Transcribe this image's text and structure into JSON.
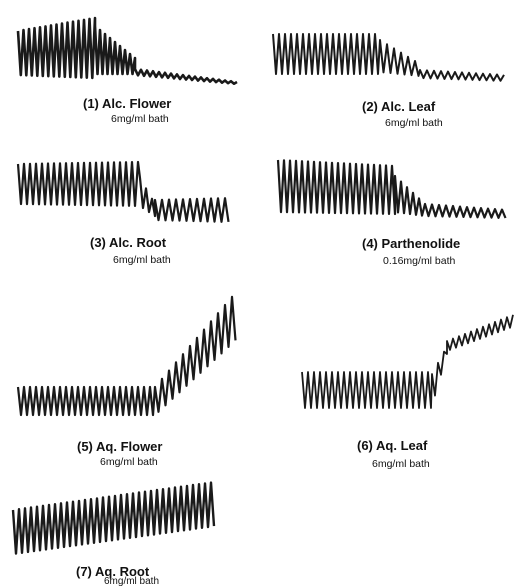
{
  "panels": [
    {
      "title": "(1) Alc. Flower",
      "dose": "6mg/ml bath"
    },
    {
      "title": "(2) Alc. Leaf",
      "dose": "6mg/ml bath"
    },
    {
      "title": "(3) Alc. Root",
      "dose": "6mg/ml bath"
    },
    {
      "title": "(4) Parthenolide",
      "dose": "0.16mg/ml bath"
    },
    {
      "title": "(5) Aq. Flower",
      "dose": "6mg/ml bath"
    },
    {
      "title": "(6) Aq. Leaf",
      "dose": "6mg/ml bath"
    },
    {
      "title": "(7) Aq. Root",
      "dose": "6mg/ml bath"
    }
  ],
  "colors": {
    "ink": "#1a1a1a",
    "background": "#ffffff"
  }
}
